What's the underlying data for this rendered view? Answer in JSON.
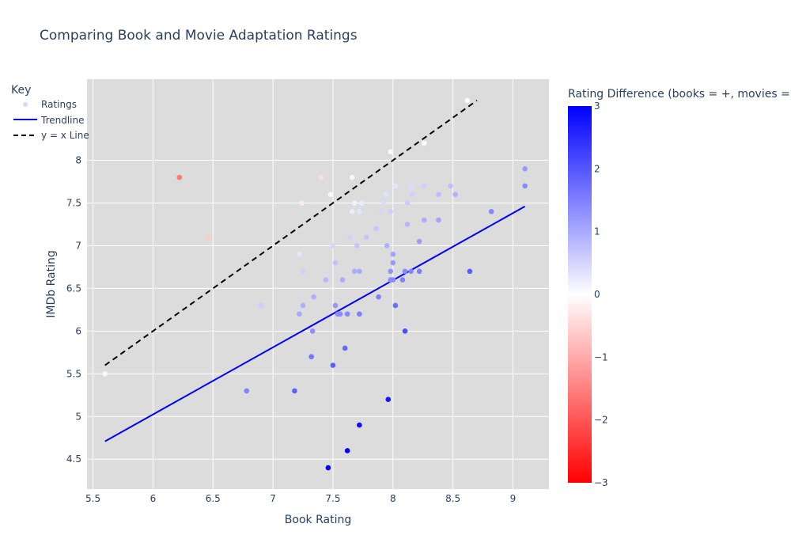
{
  "chart_data": {
    "type": "scatter",
    "title": "Comparing Book and Movie Adaptation Ratings",
    "xlabel": "Book Rating",
    "ylabel": "IMDb Rating",
    "xlim": [
      5.45,
      9.3
    ],
    "ylim": [
      4.15,
      8.95
    ],
    "x_ticks": [
      "5.5",
      "6",
      "6.5",
      "7",
      "7.5",
      "8",
      "8.5",
      "9"
    ],
    "y_ticks": [
      "4.5",
      "5",
      "5.5",
      "6",
      "6.5",
      "7",
      "7.5",
      "8"
    ],
    "x_tick_values": [
      5.5,
      6,
      6.5,
      7,
      7.5,
      8,
      8.5,
      9
    ],
    "y_tick_values": [
      4.5,
      5,
      5.5,
      6,
      6.5,
      7,
      7.5,
      8
    ],
    "grid": true,
    "legend": {
      "title": "Key",
      "placement": "top-left",
      "entries": [
        "Ratings",
        "Trendline",
        "y = x Line"
      ]
    },
    "colorbar": {
      "title": "Rating Difference (books = +, movies = -)",
      "range": [
        -3,
        3
      ],
      "ticks": [
        "3",
        "2",
        "1",
        "0",
        "−1",
        "−2",
        "−3"
      ],
      "tick_values": [
        3,
        2,
        1,
        0,
        -1,
        -2,
        -3
      ],
      "colors": [
        "#ff0000",
        "#ffffff",
        "#0000ff"
      ]
    },
    "series": [
      {
        "name": "Ratings",
        "kind": "scatter",
        "points": [
          [
            5.6,
            5.5
          ],
          [
            6.22,
            7.8
          ],
          [
            6.46,
            7.1
          ],
          [
            6.78,
            5.3
          ],
          [
            6.9,
            6.3
          ],
          [
            7.18,
            5.3
          ],
          [
            7.22,
            6.9
          ],
          [
            7.22,
            6.2
          ],
          [
            7.24,
            7.5
          ],
          [
            7.25,
            6.7
          ],
          [
            7.25,
            6.3
          ],
          [
            7.32,
            5.7
          ],
          [
            7.33,
            6.0
          ],
          [
            7.34,
            6.4
          ],
          [
            7.4,
            7.8
          ],
          [
            7.44,
            6.6
          ],
          [
            7.46,
            4.4
          ],
          [
            7.48,
            7.6
          ],
          [
            7.5,
            7.0
          ],
          [
            7.5,
            5.6
          ],
          [
            7.52,
            6.8
          ],
          [
            7.52,
            6.3
          ],
          [
            7.54,
            6.2
          ],
          [
            7.56,
            6.2
          ],
          [
            7.58,
            6.6
          ],
          [
            7.6,
            5.8
          ],
          [
            7.62,
            6.2
          ],
          [
            7.62,
            4.6
          ],
          [
            7.64,
            7.1
          ],
          [
            7.66,
            7.8
          ],
          [
            7.66,
            7.4
          ],
          [
            7.68,
            7.5
          ],
          [
            7.68,
            6.7
          ],
          [
            7.7,
            7.0
          ],
          [
            7.72,
            7.4
          ],
          [
            7.72,
            6.7
          ],
          [
            7.72,
            6.2
          ],
          [
            7.72,
            4.9
          ],
          [
            7.74,
            7.5
          ],
          [
            7.78,
            7.1
          ],
          [
            7.86,
            7.2
          ],
          [
            7.88,
            6.4
          ],
          [
            7.9,
            7.4
          ],
          [
            7.92,
            7.5
          ],
          [
            7.94,
            7.6
          ],
          [
            7.95,
            7.0
          ],
          [
            7.96,
            5.2
          ],
          [
            7.98,
            8.1
          ],
          [
            7.98,
            7.4
          ],
          [
            7.98,
            6.7
          ],
          [
            7.98,
            6.6
          ],
          [
            8.0,
            6.9
          ],
          [
            8.0,
            6.8
          ],
          [
            8.0,
            6.6
          ],
          [
            8.02,
            7.7
          ],
          [
            8.02,
            6.3
          ],
          [
            8.08,
            6.6
          ],
          [
            8.1,
            6.7
          ],
          [
            8.1,
            6.0
          ],
          [
            8.12,
            7.5
          ],
          [
            8.12,
            7.25
          ],
          [
            8.14,
            7.7
          ],
          [
            8.15,
            6.7
          ],
          [
            8.16,
            7.6
          ],
          [
            8.22,
            7.05
          ],
          [
            8.22,
            6.7
          ],
          [
            8.26,
            8.2
          ],
          [
            8.26,
            7.7
          ],
          [
            8.26,
            7.3
          ],
          [
            8.38,
            7.6
          ],
          [
            8.38,
            7.3
          ],
          [
            8.48,
            7.7
          ],
          [
            8.52,
            7.6
          ],
          [
            8.62,
            8.7
          ],
          [
            8.64,
            6.7
          ],
          [
            8.82,
            7.4
          ],
          [
            9.1,
            7.9
          ],
          [
            9.1,
            7.7
          ]
        ]
      },
      {
        "name": "Trendline",
        "kind": "line",
        "color": "#0000ff",
        "points": [
          [
            5.6,
            4.71
          ],
          [
            9.1,
            7.46
          ]
        ]
      },
      {
        "name": "y = x Line",
        "kind": "dashed-line",
        "color": "#000000",
        "points": [
          [
            5.6,
            5.6
          ],
          [
            8.7,
            8.7
          ]
        ]
      }
    ]
  }
}
